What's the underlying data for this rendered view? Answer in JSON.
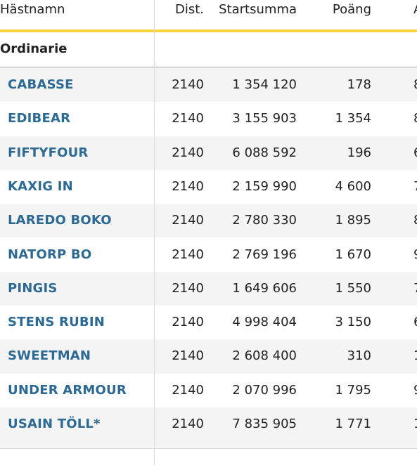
{
  "table": {
    "columns": [
      "Hästnamn",
      "Dist.",
      "Startsumma",
      "Poäng",
      "A"
    ],
    "section": "Ordinarie",
    "rows": [
      [
        "CABASSE",
        "2140",
        "1 354 120",
        "178",
        "8"
      ],
      [
        "EDIBEAR",
        "2140",
        "3 155 903",
        "1 354",
        "8"
      ],
      [
        "FIFTYFOUR",
        "2140",
        "6 088 592",
        "196",
        "6"
      ],
      [
        "KAXIG IN",
        "2140",
        "2 159 990",
        "4 600",
        "7"
      ],
      [
        "LAREDO BOKO",
        "2140",
        "2 780 330",
        "1 895",
        "8"
      ],
      [
        "NATORP BO",
        "2140",
        "2 769 196",
        "1 670",
        "9"
      ],
      [
        "PINGIS",
        "2140",
        "1 649 606",
        "1 550",
        "7"
      ],
      [
        "STENS RUBIN",
        "2140",
        "4 998 404",
        "3 150",
        "6"
      ],
      [
        "SWEETMAN",
        "2140",
        "2 608 400",
        "310",
        "1"
      ],
      [
        "UNDER ARMOUR",
        "2140",
        "2 070 996",
        "1 795",
        "9"
      ],
      [
        "USAIN TÖLL*",
        "2140",
        "7 835 905",
        "1 771",
        "1"
      ]
    ]
  }
}
